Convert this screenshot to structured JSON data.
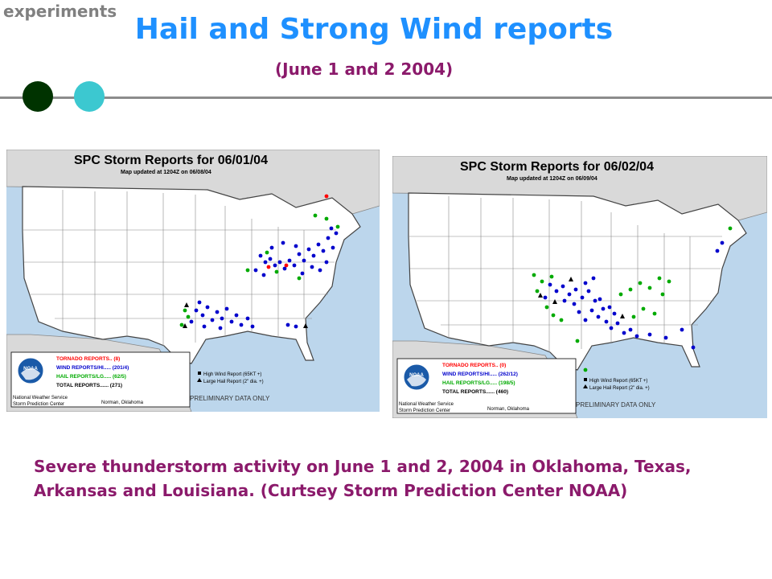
{
  "header": {
    "corner_label": "experiments",
    "title": "Hail and Strong Wind reports",
    "subtitle": "(June 1 and 2 2004)"
  },
  "colors": {
    "title": "#1e90ff",
    "accent_text": "#8b1a6b",
    "dot_dark": "#003300",
    "dot_teal": "#3cc8d0",
    "tornado": "#ff0000",
    "wind": "#0000cc",
    "hail": "#00aa00"
  },
  "maps": [
    {
      "title": "SPC Storm Reports for 06/01/04",
      "updated": "Map updated at 1204Z on 06/08/04",
      "legend": {
        "tornado": "TORNADO REPORTS.. (8)",
        "wind": "WIND REPORTS/HI..... (201/4)",
        "hail": "HAIL REPORTS/LG..... (62/5)",
        "total": "TOTAL REPORTS...... (271)",
        "high_wind": "High Wind Report (65KT +)",
        "large_hail": "Large Hail Report (2\" dia. +)",
        "agency1": "National Weather Service",
        "agency2": "Storm Prediction Center",
        "location": "Norman, Oklahoma",
        "logo": "NOAA"
      },
      "footer": "PRELIMINARY DATA ONLY"
    },
    {
      "title": "SPC Storm Reports for 06/02/04",
      "updated": "Map updated at 1204Z on 06/09/04",
      "legend": {
        "tornado": "TORNADO REPORTS.. (0)",
        "wind": "WIND REPORTS/HI..... (262/12)",
        "hail": "HAIL REPORTS/LG..... (198/5)",
        "total": "TOTAL REPORTS...... (460)",
        "high_wind": "High Wind Report (65KT +)",
        "large_hail": "Large Hail Report (2\" dia. +)",
        "agency1": "National Weather Service",
        "agency2": "Storm Prediction Center",
        "location": "Norman, Oklahoma",
        "logo": "NOAA"
      },
      "footer": "PRELIMINARY DATA ONLY"
    }
  ],
  "caption": "Severe thunderstorm activity on June 1 and 2, 2004 in Oklahoma, Texas, Arkansas and Louisiana. (Curtsey Storm Prediction Center NOAA)"
}
